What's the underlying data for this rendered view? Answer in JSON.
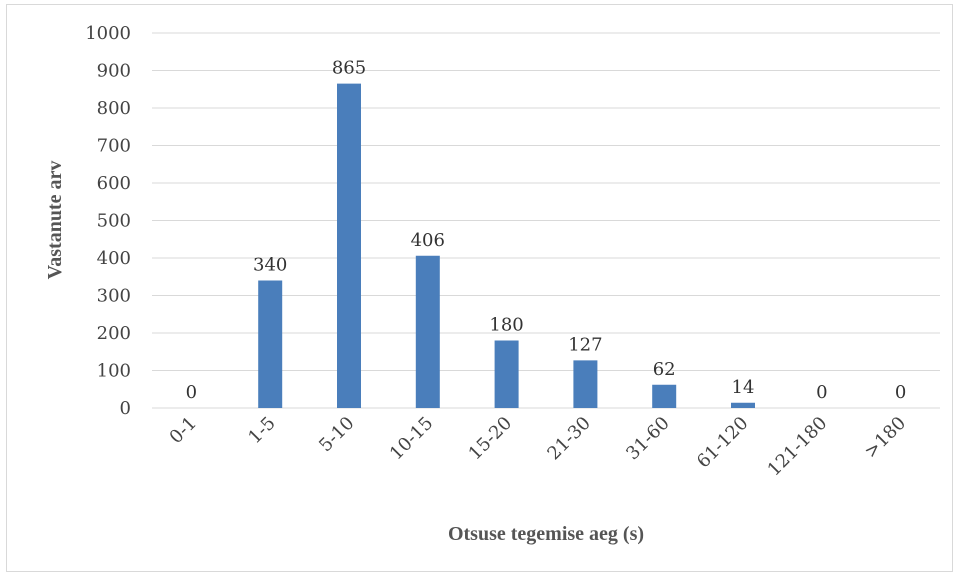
{
  "chart_data": {
    "type": "bar",
    "categories": [
      "0-1",
      "1-5",
      "5-10",
      "10-15",
      "15-20",
      "21-30",
      "31-60",
      "61-120",
      "121-180",
      ">180"
    ],
    "values": [
      0,
      340,
      865,
      406,
      180,
      127,
      62,
      14,
      0,
      0
    ],
    "data_labels": [
      "0",
      "340",
      "865",
      "406",
      "180",
      "127",
      "62",
      "14",
      "0",
      "0"
    ],
    "xlabel": "Otsuse tegemise aeg (s)",
    "ylabel": "Vastanute arv",
    "ylim": [
      0,
      1000
    ],
    "yticks": [
      "0",
      "100",
      "200",
      "300",
      "400",
      "500",
      "600",
      "700",
      "800",
      "900",
      "1000"
    ],
    "grid": true,
    "legend": "none",
    "bar_color": "#4a7ebb",
    "grid_color": "#d9d9d9"
  }
}
